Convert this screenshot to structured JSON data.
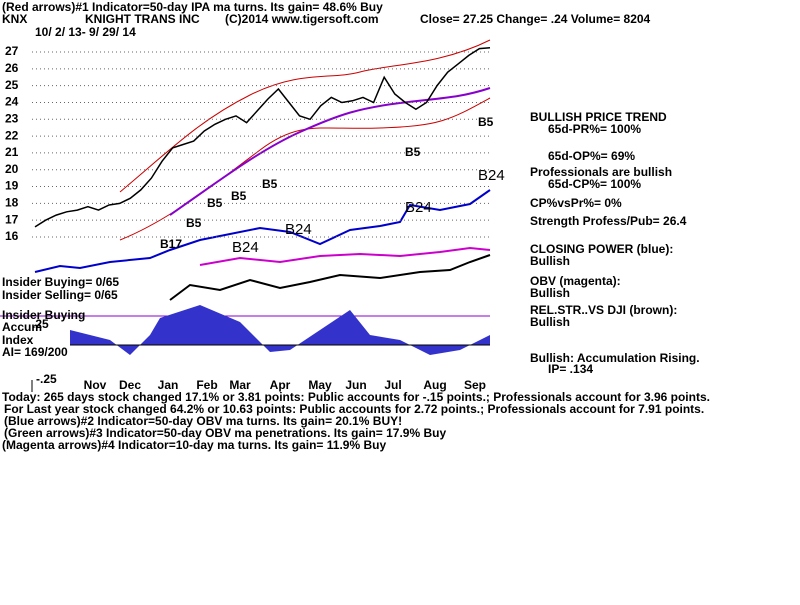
{
  "header": {
    "line1": "(Red arrows)#1 Indicator=50-day IPA ma turns. Its gain= 48.6% Buy",
    "symbol": "KNX",
    "company": "KNIGHT TRANS INC",
    "copyright": "(C)2014 www.tigersoft.com",
    "quote": "Close=  27.25  Change= .24 Volume= 8204",
    "range": "10/ 2/ 13-  9/ 29/ 14"
  },
  "panel": {
    "p1": "BULLISH PRICE TREND",
    "p2": "65d-PR%= 100%",
    "p3": "65d-OP%= 69%",
    "p4": "Professionals are bullish",
    "p5": "65d-CP%= 100%",
    "p6": "CP%vsPr%=  0%",
    "p7": "Strength Profess/Pub= 26.4",
    "p8": "CLOSING POWER (blue):",
    "p9": "Bullish",
    "p10": "OBV (magenta):",
    "p11": "Bullish",
    "p12": "REL.STR..VS DJI (brown):",
    "p13": "Bullish",
    "p14": "Bullish: Accumulation Rising.",
    "p15": "IP=  .134"
  },
  "left": {
    "l1": "Insider Buying= 0/65",
    "l2": "Insider Selling= 0/65",
    "l3": "Insider Buying",
    "l4": "Accum",
    "l5": ".25",
    "l6": "Index",
    "l7": "AI= 169/200",
    "l8": "-.25"
  },
  "labels": {
    "b1": "B24",
    "b2": "B24",
    "b3": "B24",
    "b4": "B24",
    "b5": "B5",
    "b6": "B5",
    "b7": "B5",
    "b8": "B5",
    "b9": "B5",
    "b10": "B5",
    "b11": "B17"
  },
  "footer": {
    "f1": "Today: 265 days stock changed  17.1% or  3.81 points:  Public accounts for -.15 points.;  Professionals account for  3.96 points.",
    "f2": "For Last year stock changed  64.2% or  10.63 points:  Public accounts for  2.72 points.;  Professionals account for  7.91 points.",
    "f3": "(Blue arrows)#2 Indicator=50-day OBV ma turns. Its gain= 20.1% BUY!",
    "f4": "(Green arrows)#3 Indicator=50-day OBV ma penetrations. Its gain= 17.9% Buy",
    "f5": "(Magenta arrows)#4 Indicator=10-day ma turns. Its gain= 11.9% Buy"
  },
  "chart_data": {
    "type": "line",
    "color": "#000000",
    "values": [
      16.6,
      17,
      17.3,
      17.5,
      17.6,
      17.8,
      17.6,
      17.9,
      18,
      18.3,
      18.8,
      19.5,
      20.5,
      21.3,
      21.5,
      21.7,
      22.3,
      22.7,
      23,
      23.2,
      22.8,
      23.5,
      24.2,
      24.8,
      24,
      23.2,
      23,
      23.8,
      24.3,
      24,
      24.1,
      24.3,
      24,
      25.5,
      24.5,
      24,
      23.6,
      24,
      25,
      25.8,
      26.3,
      26.8,
      27.2,
      27.25
    ],
    "month_labels": [
      "Nov",
      "Dec",
      "Jan",
      "Feb",
      "Mar",
      "Apr",
      "May",
      "Jun",
      "Jul",
      "Aug",
      "Sep"
    ],
    "ylim": [
      16,
      27
    ],
    "yticks": [
      16,
      17,
      18,
      19,
      20,
      21,
      22,
      23,
      24,
      25,
      26,
      27
    ],
    "grid": true
  }
}
